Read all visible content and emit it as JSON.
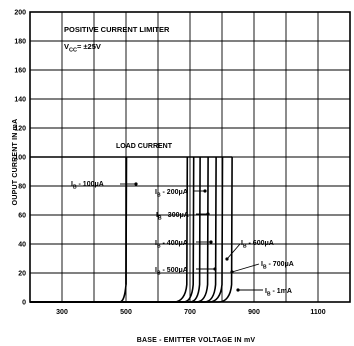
{
  "chart_data": {
    "type": "line",
    "title": "POSITIVE CURRENT LIMITER",
    "condition": "V",
    "condition_sub": "CC",
    "condition_value": "= ±25V",
    "load_current_label": "LOAD CURRENT",
    "xlabel": "BASE - EMITTER VOLTAGE IN mV",
    "ylabel": "OUPUT CURRENT IN mA",
    "xlim": [
      200,
      1200
    ],
    "ylim": [
      0,
      200
    ],
    "x_ticks": [
      300,
      500,
      700,
      900,
      1100
    ],
    "x_tick_labels": [
      "300",
      "500",
      "700",
      "900",
      "1100"
    ],
    "y_ticks": [
      0,
      20,
      40,
      60,
      80,
      100,
      120,
      140,
      160,
      180,
      200
    ],
    "y_tick_labels": [
      "0",
      "20",
      "40",
      "60",
      "80",
      "100",
      "120",
      "140",
      "160",
      "180",
      "200"
    ],
    "load_current_limit": 100,
    "series": [
      {
        "name": "I",
        "sub": "B",
        "value_label": " - 100μA",
        "knee_start": 480,
        "knee_end": 500
      },
      {
        "name": "I",
        "sub": "B",
        "value_label": " - 200μA",
        "knee_start": 650,
        "knee_end": 690
      },
      {
        "name": "I",
        "sub": "B",
        "value_label": " - 300μA",
        "knee_start": 680,
        "knee_end": 710
      },
      {
        "name": "I",
        "sub": "B",
        "value_label": " - 400μA",
        "knee_start": 700,
        "knee_end": 730
      },
      {
        "name": "I",
        "sub": "B",
        "value_label": " - 500μA",
        "knee_start": 720,
        "knee_end": 755
      },
      {
        "name": "I",
        "sub": "B",
        "value_label": " - 600μA",
        "knee_start": 745,
        "knee_end": 780
      },
      {
        "name": "I",
        "sub": "B",
        "value_label": " - 700μA",
        "knee_start": 760,
        "knee_end": 800
      },
      {
        "name": "I",
        "sub": "B",
        "value_label": " - 1mA",
        "knee_start": 790,
        "knee_end": 830
      }
    ]
  }
}
